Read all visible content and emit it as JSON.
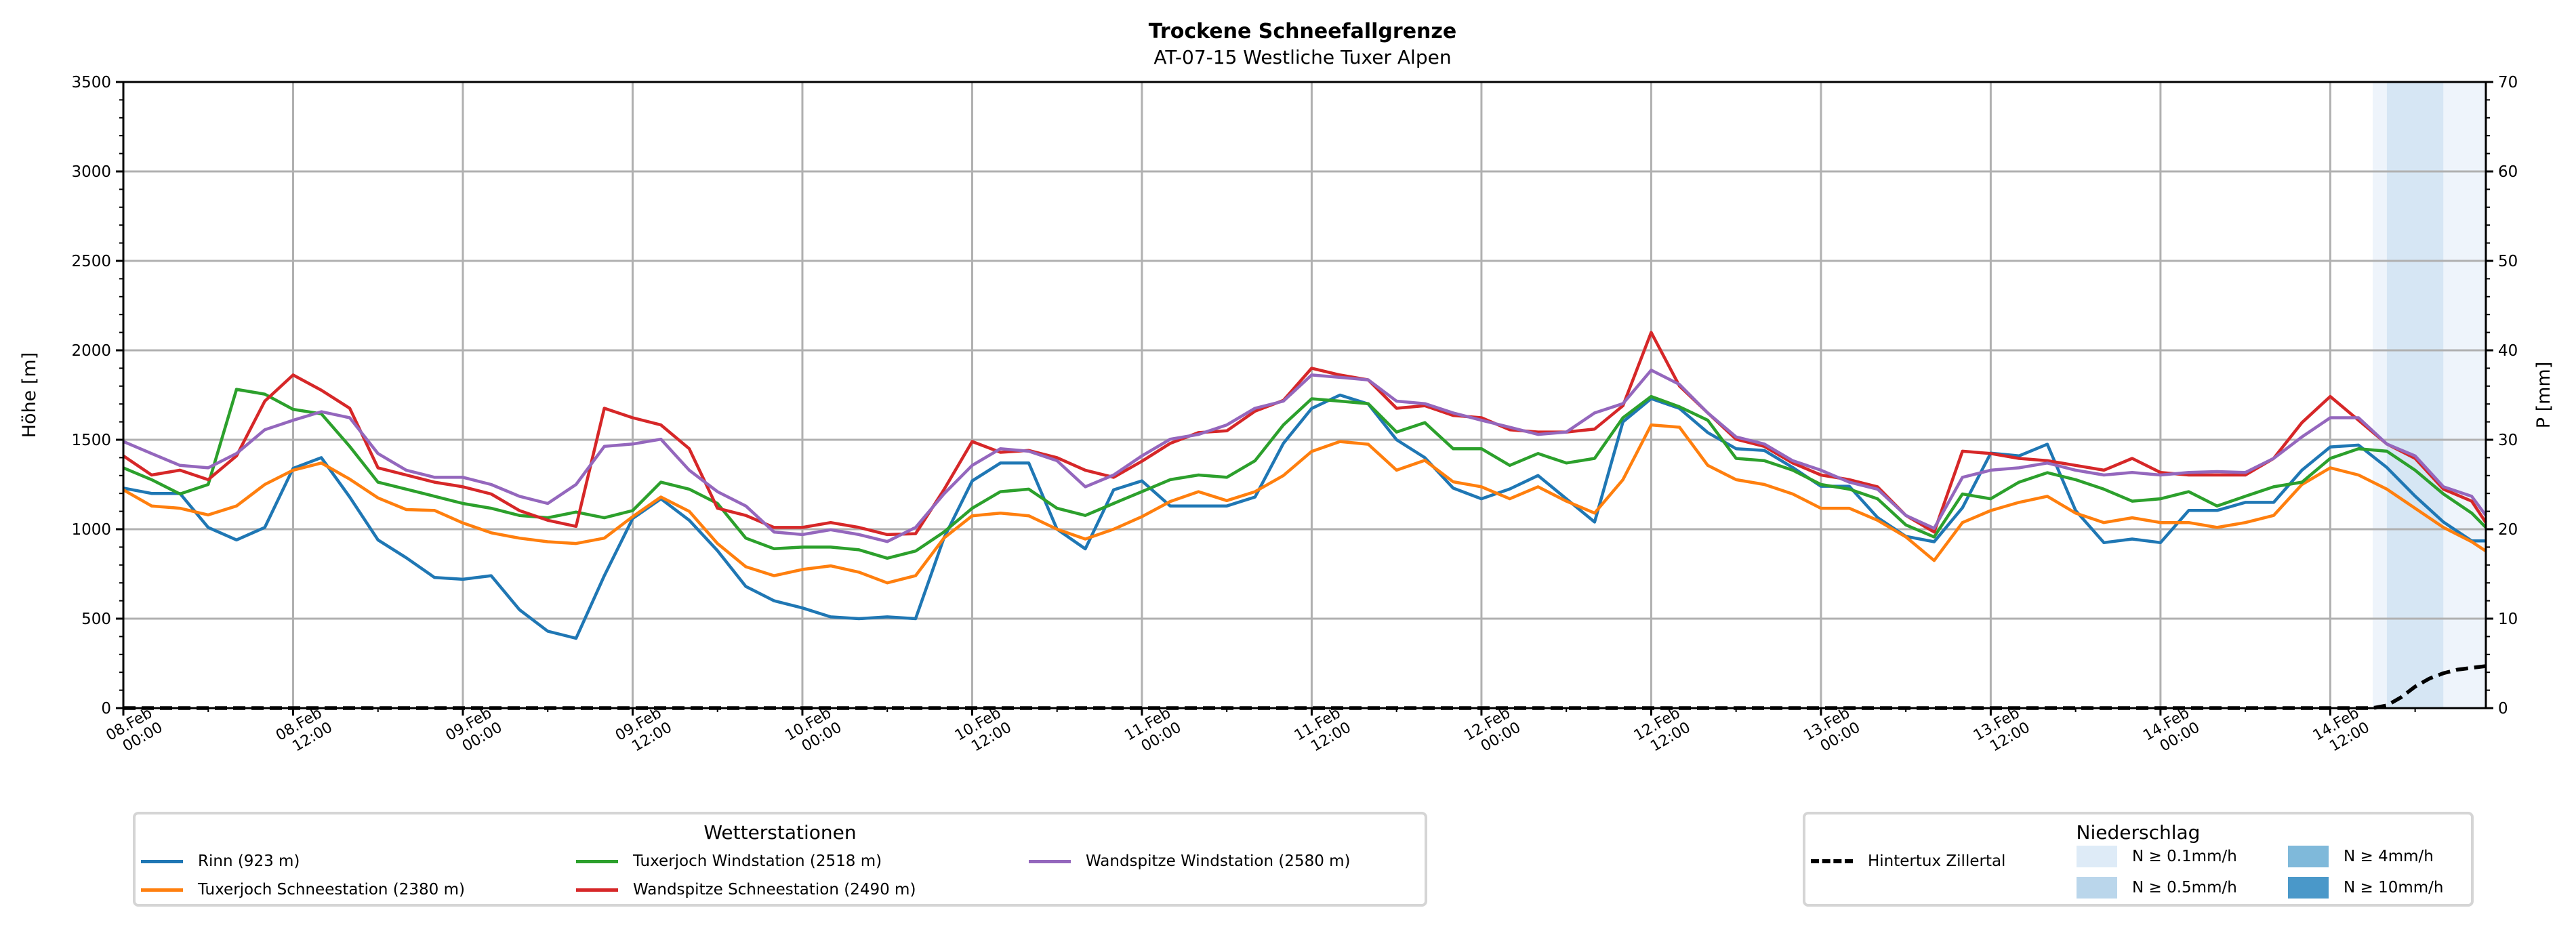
{
  "chart_data": {
    "type": "line",
    "title": "Trockene Schneefallgrenze",
    "subtitle": "AT-07-15 Westliche Tuxer Alpen",
    "ylabel": "Höhe [m]",
    "ylabel_right": "P [mm]",
    "ylim": [
      0,
      3500
    ],
    "ylim_right": [
      0,
      70
    ],
    "yticks": [
      "0",
      "500",
      "1000",
      "1500",
      "2000",
      "2500",
      "3000",
      "3500"
    ],
    "yticks_right": [
      "0",
      "10",
      "20",
      "30",
      "40",
      "50",
      "60",
      "70"
    ],
    "x_unit": "hours since 08.Feb 00:00",
    "xlim": [
      0,
      167
    ],
    "xticks": [
      {
        "h": 0,
        "date": "08.Feb",
        "time": "00:00"
      },
      {
        "h": 12,
        "date": "08.Feb",
        "time": "12:00"
      },
      {
        "h": 24,
        "date": "09.Feb",
        "time": "00:00"
      },
      {
        "h": 36,
        "date": "09.Feb",
        "time": "12:00"
      },
      {
        "h": 48,
        "date": "10.Feb",
        "time": "00:00"
      },
      {
        "h": 60,
        "date": "10.Feb",
        "time": "12:00"
      },
      {
        "h": 72,
        "date": "11.Feb",
        "time": "00:00"
      },
      {
        "h": 84,
        "date": "11.Feb",
        "time": "12:00"
      },
      {
        "h": 96,
        "date": "12.Feb",
        "time": "00:00"
      },
      {
        "h": 108,
        "date": "12.Feb",
        "time": "12:00"
      },
      {
        "h": 120,
        "date": "13.Feb",
        "time": "00:00"
      },
      {
        "h": 132,
        "date": "13.Feb",
        "time": "12:00"
      },
      {
        "h": 144,
        "date": "14.Feb",
        "time": "00:00"
      },
      {
        "h": 156,
        "date": "14.Feb",
        "time": "12:00"
      }
    ],
    "grid": true,
    "x": [
      0,
      2,
      4,
      6,
      8,
      10,
      12,
      14,
      16,
      18,
      20,
      22,
      24,
      26,
      28,
      30,
      32,
      34,
      36,
      38,
      40,
      42,
      44,
      46,
      48,
      50,
      52,
      54,
      56,
      58,
      60,
      62,
      64,
      66,
      68,
      70,
      72,
      74,
      76,
      78,
      80,
      82,
      84,
      86,
      88,
      90,
      92,
      94,
      96,
      98,
      100,
      102,
      104,
      106,
      108,
      110,
      112,
      114,
      116,
      118,
      120,
      122,
      124,
      126,
      128,
      130,
      132,
      134,
      136,
      138,
      140,
      142,
      144,
      146,
      148,
      150,
      152,
      154,
      156,
      158,
      160,
      162,
      164,
      166,
      167
    ],
    "series": [
      {
        "name": "Rinn (923 m)",
        "color": "#1f77b4",
        "values": [
          1230,
          1200,
          1200,
          1010,
          940,
          1010,
          1340,
          1400,
          1180,
          940,
          840,
          730,
          720,
          740,
          550,
          430,
          390,
          740,
          1060,
          1170,
          1050,
          880,
          680,
          600,
          560,
          510,
          500,
          510,
          500,
          950,
          1270,
          1370,
          1370,
          1000,
          890,
          1220,
          1270,
          1130,
          1130,
          1130,
          1180,
          1480,
          1675,
          1750,
          1700,
          1500,
          1400,
          1230,
          1170,
          1225,
          1300,
          1170,
          1040,
          1600,
          1730,
          1675,
          1540,
          1450,
          1440,
          1345,
          1240,
          1240,
          1065,
          960,
          930,
          1120,
          1425,
          1410,
          1475,
          1105,
          925,
          945,
          925,
          1105,
          1105,
          1150,
          1150,
          1330,
          1460,
          1470,
          1345,
          1185,
          1040,
          935,
          935
        ]
      },
      {
        "name": "Tuxerjoch Schneestation (2380 m)",
        "color": "#ff7f0e",
        "values": [
          1220,
          1130,
          1117,
          1080,
          1130,
          1250,
          1330,
          1370,
          1280,
          1175,
          1110,
          1105,
          1035,
          980,
          950,
          930,
          920,
          950,
          1070,
          1180,
          1100,
          920,
          790,
          740,
          775,
          795,
          760,
          700,
          740,
          950,
          1075,
          1090,
          1075,
          1000,
          945,
          1000,
          1070,
          1155,
          1210,
          1160,
          1210,
          1300,
          1435,
          1490,
          1475,
          1330,
          1385,
          1265,
          1237,
          1170,
          1237,
          1157,
          1090,
          1277,
          1583,
          1570,
          1357,
          1277,
          1250,
          1197,
          1117,
          1117,
          1050,
          957,
          825,
          1037,
          1104,
          1150,
          1184,
          1090,
          1037,
          1064,
          1037,
          1037,
          1010,
          1037,
          1077,
          1250,
          1343,
          1303,
          1224,
          1117,
          1010,
          930,
          878
        ]
      },
      {
        "name": "Tuxerjoch Windstation (2518 m)",
        "color": "#2ca02c",
        "values": [
          1343,
          1277,
          1197,
          1250,
          1782,
          1755,
          1670,
          1645,
          1463,
          1263,
          1224,
          1184,
          1144,
          1117,
          1077,
          1064,
          1096,
          1064,
          1104,
          1263,
          1224,
          1144,
          950,
          891,
          900,
          900,
          885,
          838,
          878,
          984,
          1117,
          1210,
          1224,
          1117,
          1077,
          1144,
          1210,
          1277,
          1303,
          1290,
          1383,
          1583,
          1729,
          1716,
          1702,
          1543,
          1596,
          1450,
          1450,
          1357,
          1423,
          1370,
          1396,
          1623,
          1742,
          1684,
          1609,
          1396,
          1383,
          1330,
          1250,
          1224,
          1170,
          1024,
          957,
          1197,
          1170,
          1263,
          1316,
          1277,
          1224,
          1157,
          1170,
          1210,
          1130,
          1184,
          1237,
          1263,
          1396,
          1450,
          1436,
          1330,
          1197,
          1090,
          1010
        ]
      },
      {
        "name": "Wandspitze Schneestation (2490 m)",
        "color": "#d62728",
        "values": [
          1410,
          1303,
          1330,
          1277,
          1410,
          1716,
          1862,
          1777,
          1676,
          1343,
          1303,
          1263,
          1237,
          1197,
          1104,
          1050,
          1016,
          1676,
          1623,
          1583,
          1450,
          1117,
          1077,
          1010,
          1010,
          1037,
          1010,
          970,
          975,
          1220,
          1490,
          1430,
          1440,
          1400,
          1330,
          1290,
          1380,
          1480,
          1540,
          1550,
          1660,
          1720,
          1900,
          1862,
          1835,
          1676,
          1690,
          1636,
          1623,
          1556,
          1543,
          1543,
          1560,
          1690,
          2100,
          1800,
          1650,
          1503,
          1463,
          1370,
          1303,
          1277,
          1237,
          1077,
          984,
          1436,
          1423,
          1396,
          1383,
          1357,
          1330,
          1396,
          1317,
          1303,
          1303,
          1303,
          1396,
          1596,
          1742,
          1609,
          1476,
          1396,
          1224,
          1157,
          1037
        ]
      },
      {
        "name": "Wandspitze Windstation (2580 m)",
        "color": "#9467bd",
        "values": [
          1490,
          1423,
          1357,
          1343,
          1423,
          1556,
          1609,
          1657,
          1623,
          1423,
          1330,
          1290,
          1290,
          1250,
          1184,
          1144,
          1250,
          1463,
          1476,
          1503,
          1330,
          1210,
          1130,
          984,
          970,
          997,
          970,
          931,
          1010,
          1197,
          1357,
          1450,
          1436,
          1383,
          1237,
          1303,
          1410,
          1503,
          1530,
          1583,
          1676,
          1716,
          1862,
          1849,
          1835,
          1716,
          1702,
          1650,
          1609,
          1570,
          1530,
          1543,
          1650,
          1702,
          1889,
          1809,
          1650,
          1516,
          1476,
          1383,
          1330,
          1263,
          1224,
          1077,
          1005,
          1290,
          1330,
          1343,
          1370,
          1330,
          1303,
          1317,
          1303,
          1317,
          1322,
          1317,
          1396,
          1516,
          1623,
          1623,
          1476,
          1410,
          1237,
          1184,
          1077
        ]
      }
    ],
    "precipitation": {
      "name": "Hintertux Zillertal",
      "axis": "right",
      "x": [
        0,
        158,
        159,
        160,
        161,
        162,
        163,
        164,
        165,
        166,
        167
      ],
      "values": [
        0,
        0,
        0,
        0.3,
        1.2,
        2.4,
        3.3,
        3.9,
        4.3,
        4.5,
        4.7
      ]
    },
    "precip_intensity_bands": [
      {
        "from": 159,
        "to": 160,
        "class": "N ≥ 0.1mm/h"
      },
      {
        "from": 160,
        "to": 164,
        "class": "N ≥ 0.5mm/h"
      },
      {
        "from": 164,
        "to": 167,
        "class": "N ≥ 0.1mm/h"
      }
    ],
    "legend_stations": {
      "title": "Wetterstationen",
      "placement": "bottom-left"
    },
    "legend_precip": {
      "title": "Niederschlag",
      "placement": "bottom-right",
      "line_label": "Hintertux Zillertal",
      "classes": [
        {
          "label": "N ≥ 0.1mm/h",
          "color": "#deebf7"
        },
        {
          "label": "N ≥ 0.5mm/h",
          "color": "#bad6eb"
        },
        {
          "label": "N ≥ 4mm/h",
          "color": "#7fb9da"
        },
        {
          "label": "N ≥ 10mm/h",
          "color": "#4a98c9"
        }
      ]
    }
  }
}
